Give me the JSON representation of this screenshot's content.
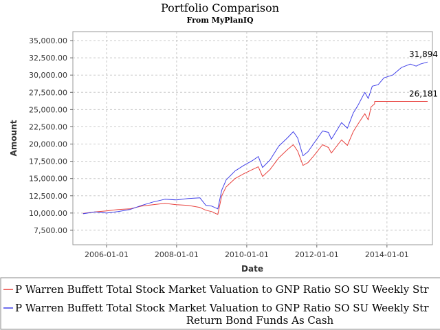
{
  "chart_data": {
    "type": "line",
    "title": "Portfolio Comparison",
    "subtitle": "From MyPlanIQ",
    "xlabel": "Date",
    "ylabel": "Amount",
    "x_ticks": [
      "2006-01-01",
      "2008-01-01",
      "2010-01-01",
      "2012-01-01",
      "2014-01-01"
    ],
    "y_ticks": [
      "7,500.00",
      "10,000.00",
      "12,500.00",
      "15,000.00",
      "17,500.00",
      "20,000.00",
      "22,500.00",
      "25,000.00",
      "27,500.00",
      "30,000.00",
      "32,500.00",
      "35,000.00"
    ],
    "xlim": [
      "2005-01-15",
      "2015-04-20"
    ],
    "ylim": [
      5400,
      36300
    ],
    "grid": true,
    "legend_position": "bottom",
    "series": [
      {
        "name": "P Warren Buffett Total Stock Market Valuation to GNP Ratio SO SU Weekly Str",
        "color": "#e8403c",
        "end_label": "26,181",
        "points": [
          [
            "2005-05-01",
            9950
          ],
          [
            "2005-09-01",
            10150
          ],
          [
            "2006-01-01",
            10300
          ],
          [
            "2006-05-01",
            10500
          ],
          [
            "2006-09-01",
            10600
          ],
          [
            "2007-01-01",
            11000
          ],
          [
            "2007-05-01",
            11200
          ],
          [
            "2007-09-01",
            11400
          ],
          [
            "2008-01-01",
            11200
          ],
          [
            "2008-05-01",
            11100
          ],
          [
            "2008-09-01",
            10800
          ],
          [
            "2008-11-01",
            10400
          ],
          [
            "2009-01-01",
            10200
          ],
          [
            "2009-03-05",
            9800
          ],
          [
            "2009-04-15",
            12500
          ],
          [
            "2009-06-01",
            13800
          ],
          [
            "2009-09-01",
            15000
          ],
          [
            "2009-12-01",
            15700
          ],
          [
            "2010-03-01",
            16300
          ],
          [
            "2010-05-01",
            16700
          ],
          [
            "2010-06-15",
            15300
          ],
          [
            "2010-09-01",
            16300
          ],
          [
            "2010-12-01",
            18000
          ],
          [
            "2011-03-01",
            19200
          ],
          [
            "2011-05-01",
            19900
          ],
          [
            "2011-06-15",
            19000
          ],
          [
            "2011-08-10",
            16900
          ],
          [
            "2011-10-01",
            17300
          ],
          [
            "2011-12-01",
            18300
          ],
          [
            "2012-03-01",
            19900
          ],
          [
            "2012-05-01",
            19500
          ],
          [
            "2012-06-01",
            18700
          ],
          [
            "2012-09-15",
            20600
          ],
          [
            "2012-11-15",
            19800
          ],
          [
            "2013-01-15",
            21800
          ],
          [
            "2013-03-01",
            22800
          ],
          [
            "2013-05-15",
            24400
          ],
          [
            "2013-06-20",
            23500
          ],
          [
            "2013-07-20",
            25400
          ],
          [
            "2013-08-25",
            25800
          ],
          [
            "2013-08-26",
            26181
          ],
          [
            "2015-03-01",
            26181
          ]
        ]
      },
      {
        "name": "P Warren Buffett Total Stock Market Valuation to GNP Ratio SO SU Weekly Str Return Bond Funds As Cash",
        "color": "#3f3fe8",
        "end_label": "31,894",
        "points": [
          [
            "2005-05-01",
            9900
          ],
          [
            "2005-09-01",
            10150
          ],
          [
            "2006-01-01",
            10000
          ],
          [
            "2006-05-01",
            10200
          ],
          [
            "2006-09-01",
            10500
          ],
          [
            "2007-01-01",
            11100
          ],
          [
            "2007-05-01",
            11600
          ],
          [
            "2007-09-01",
            12000
          ],
          [
            "2008-01-01",
            11900
          ],
          [
            "2008-05-01",
            12100
          ],
          [
            "2008-09-01",
            12200
          ],
          [
            "2008-11-01",
            11100
          ],
          [
            "2009-01-01",
            11000
          ],
          [
            "2009-03-05",
            10600
          ],
          [
            "2009-04-15",
            13300
          ],
          [
            "2009-06-01",
            14800
          ],
          [
            "2009-09-01",
            16100
          ],
          [
            "2009-12-01",
            16900
          ],
          [
            "2010-03-01",
            17600
          ],
          [
            "2010-05-01",
            18200
          ],
          [
            "2010-06-15",
            16600
          ],
          [
            "2010-09-01",
            17700
          ],
          [
            "2010-12-01",
            19700
          ],
          [
            "2011-03-01",
            20900
          ],
          [
            "2011-05-01",
            21800
          ],
          [
            "2011-06-15",
            20900
          ],
          [
            "2011-08-10",
            18300
          ],
          [
            "2011-10-01",
            18900
          ],
          [
            "2011-12-01",
            20100
          ],
          [
            "2012-03-01",
            21900
          ],
          [
            "2012-05-01",
            21700
          ],
          [
            "2012-06-01",
            20700
          ],
          [
            "2012-09-15",
            23100
          ],
          [
            "2012-11-15",
            22300
          ],
          [
            "2013-01-15",
            24500
          ],
          [
            "2013-03-01",
            25500
          ],
          [
            "2013-05-15",
            27500
          ],
          [
            "2013-06-20",
            26600
          ],
          [
            "2013-08-01",
            28400
          ],
          [
            "2013-10-01",
            28600
          ],
          [
            "2013-12-01",
            29600
          ],
          [
            "2014-03-01",
            30000
          ],
          [
            "2014-06-01",
            31100
          ],
          [
            "2014-09-01",
            31600
          ],
          [
            "2014-11-01",
            31300
          ],
          [
            "2014-12-15",
            31600
          ],
          [
            "2015-03-01",
            31894
          ]
        ]
      }
    ]
  }
}
